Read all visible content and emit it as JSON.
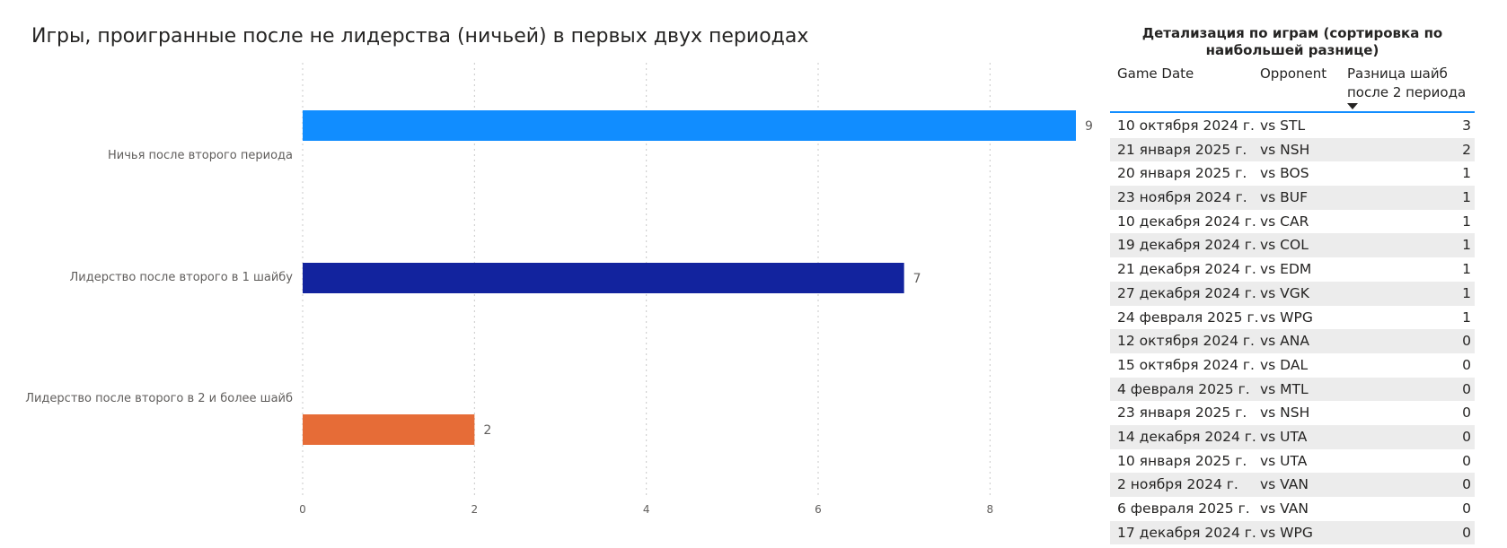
{
  "chart_data": {
    "type": "bar",
    "orientation": "horizontal",
    "title": "Игры, проигранные после не лидерства (ничьей) в первых двух периодах",
    "categories": [
      "Ничья после второго периода",
      "Лидерство после второго в 1 шайбу",
      "Лидерство после второго в 2 и более шайб"
    ],
    "values": [
      9,
      7,
      2
    ],
    "colors": [
      "#118dff",
      "#12239e",
      "#e66c37"
    ],
    "xlim": [
      0,
      9
    ],
    "xticks": [
      0,
      2,
      4,
      6,
      8
    ],
    "grid": true
  },
  "table": {
    "title": "Детализация по играм (сортировка по наибольшей разнице)",
    "columns": [
      "Game Date",
      "Opponent",
      "Разница шайб после 2 периода"
    ],
    "rows": [
      [
        "10 октября 2024 г.",
        "vs STL",
        "3"
      ],
      [
        "21 января 2025 г.",
        "vs NSH",
        "2"
      ],
      [
        "20 января 2025 г.",
        "vs BOS",
        "1"
      ],
      [
        "23 ноября 2024 г.",
        "vs BUF",
        "1"
      ],
      [
        "10 декабря 2024 г.",
        "vs CAR",
        "1"
      ],
      [
        "19 декабря 2024 г.",
        "vs COL",
        "1"
      ],
      [
        "21 декабря 2024 г.",
        "vs EDM",
        "1"
      ],
      [
        "27 декабря 2024 г.",
        "vs VGK",
        "1"
      ],
      [
        "24 февраля 2025 г.",
        "vs WPG",
        "1"
      ],
      [
        "12 октября 2024 г.",
        "vs ANA",
        "0"
      ],
      [
        "15 октября 2024 г.",
        "vs DAL",
        "0"
      ],
      [
        "4 февраля 2025 г.",
        "vs MTL",
        "0"
      ],
      [
        "23 января 2025 г.",
        "vs NSH",
        "0"
      ],
      [
        "14 декабря 2024 г.",
        "vs UTA",
        "0"
      ],
      [
        "10 января 2025 г.",
        "vs UTA",
        "0"
      ],
      [
        "2 ноября 2024 г.",
        "vs VAN",
        "0"
      ],
      [
        "6 февраля 2025 г.",
        "vs VAN",
        "0"
      ],
      [
        "17 декабря 2024 г.",
        "vs WPG",
        "0"
      ]
    ]
  }
}
